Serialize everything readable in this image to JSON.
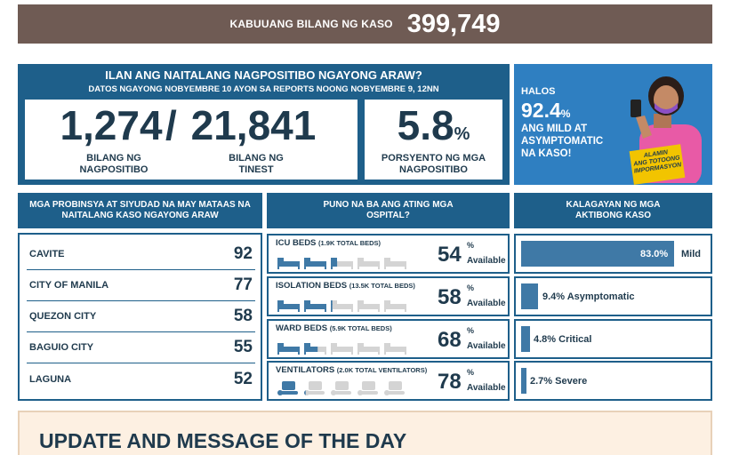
{
  "total": {
    "label": "KABUUANG BILANG NG KASO",
    "value": "399,749"
  },
  "positive": {
    "title": "ILAN ANG NAITALANG NAGPOSITIBO NGAYONG ARAW?",
    "subtitle": "DATOS NGAYONG NOBYEMBRE 10 AYON SA REPORTS NOONG NOBYEMBRE 9, 12NN",
    "positive_count": "1,274",
    "slash": "/",
    "tested_count": "21,841",
    "positive_label_1": "BILANG NG",
    "positive_label_2": "NAGPOSITIBO",
    "tested_label_1": "BILANG NG",
    "tested_label_2": "TINEST",
    "rate_value": "5.8",
    "rate_unit": "%",
    "rate_label_1": "PORSYENTO NG MGA",
    "rate_label_2": "NAGPOSITIBO"
  },
  "promo": {
    "halos": "HALOS",
    "percent": "92.4",
    "unit": "%",
    "line1": "ANG MILD AT",
    "line2": "ASYMPTOMATIC",
    "line3": "NA KASO!",
    "sign_1": "ALAMIN",
    "sign_2": "ANG TOTOONG",
    "sign_3": "IMPORMASYON",
    "colors": {
      "bg": "#2f7fc1",
      "shirt": "#e85aa6",
      "mask": "#8b4fc4",
      "sign": "#f2c400"
    }
  },
  "provinces": {
    "header": "MGA PROBINSYA AT SIYUDAD NA MAY MATAAS NA NAITALANG KASO NGAYONG ARAW",
    "rows": [
      {
        "name": "CAVITE",
        "value": "92"
      },
      {
        "name": "CITY OF MANILA",
        "value": "77"
      },
      {
        "name": "QUEZON CITY",
        "value": "58"
      },
      {
        "name": "BAGUIO CITY",
        "value": "55"
      },
      {
        "name": "LAGUNA",
        "value": "52"
      }
    ]
  },
  "hospitals": {
    "header": "PUNO NA BA ANG ATING MGA OSPITAL?",
    "available_label": "Available",
    "percent_sign": "%",
    "cards": [
      {
        "title": "ICU BEDS",
        "total": "(1.9K TOTAL BEDS)",
        "percent": "54",
        "occupied_fraction": 0.46,
        "icon": "bed-icon"
      },
      {
        "title": "ISOLATION BEDS",
        "total": "(13.5K TOTAL BEDS)",
        "percent": "58",
        "occupied_fraction": 0.42,
        "icon": "bed-icon"
      },
      {
        "title": "WARD BEDS",
        "total": "(5.9K TOTAL BEDS)",
        "percent": "68",
        "occupied_fraction": 0.32,
        "icon": "bed-icon"
      },
      {
        "title": "VENTILATORS",
        "total": "(2.0K TOTAL VENTILATORS)",
        "percent": "78",
        "occupied_fraction": 0.22,
        "icon": "ventilator-icon"
      }
    ],
    "colors": {
      "filled": "#3f79a6",
      "empty": "#d4d4d4"
    }
  },
  "active": {
    "header": "KALAGAYAN NG MGA AKTIBONG KASO",
    "rows": [
      {
        "label": "83.0%",
        "side_label": "Mild",
        "fraction": 0.83
      },
      {
        "label": "9.4% Asymptomatic",
        "fraction": 0.094
      },
      {
        "label": "4.8% Critical",
        "fraction": 0.048
      },
      {
        "label": "2.7% Severe",
        "fraction": 0.027
      }
    ]
  },
  "update": {
    "title": "UPDATE AND MESSAGE OF THE DAY"
  }
}
